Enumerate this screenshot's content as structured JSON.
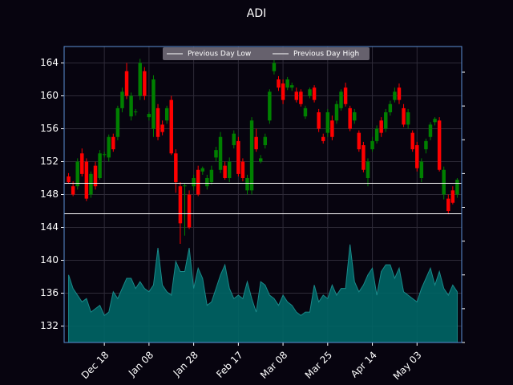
{
  "chart_data": {
    "type": "candlestick",
    "title": "ADI",
    "categories": [
      null,
      null,
      null,
      null,
      null,
      null,
      null,
      null,
      "Dec 18",
      null,
      null,
      null,
      null,
      null,
      null,
      null,
      null,
      null,
      "Jan 08",
      null,
      null,
      null,
      null,
      null,
      null,
      null,
      null,
      null,
      "Jan 28",
      null,
      null,
      null,
      null,
      null,
      null,
      null,
      null,
      null,
      "Feb 17",
      null,
      null,
      null,
      null,
      null,
      null,
      null,
      null,
      null,
      "Mar 08",
      null,
      null,
      null,
      null,
      null,
      null,
      null,
      null,
      null,
      "Mar 25",
      null,
      null,
      null,
      null,
      null,
      null,
      null,
      null,
      null,
      "Apr 14",
      null,
      null,
      null,
      null,
      null,
      null,
      null,
      null,
      null,
      "May 03",
      null,
      null,
      null,
      null,
      null,
      null,
      null,
      null,
      null
    ],
    "open": [
      150.2,
      149.0,
      149.0,
      153.0,
      152.0,
      148.0,
      151.5,
      150.0,
      152.8,
      152.5,
      155.0,
      155.0,
      158.5,
      163.0,
      157.5,
      158.0,
      160.0,
      163.0,
      157.4,
      156.0,
      158.5,
      156.5,
      157.0,
      159.5,
      153.0,
      149.0,
      149.0,
      148.0,
      149.0,
      151.0,
      150.8,
      149.0,
      149.5,
      152.5,
      151.0,
      151.5,
      150.0,
      154.0,
      154.5,
      152.0,
      148.5,
      148.5,
      155.0,
      152.0,
      154.0,
      157.0,
      163.0,
      162.0,
      161.5,
      161.0,
      161.0,
      160.5,
      160.5,
      157.5,
      160.0,
      161.0,
      158.0,
      155.0,
      155.5,
      157.0,
      157.0,
      158.5,
      161.0,
      158.5,
      157.0,
      155.5,
      154.0,
      150.0,
      153.5,
      154.5,
      157.0,
      156.0,
      158.0,
      159.5,
      161.0,
      158.5,
      156.5,
      155.5,
      154.0,
      150.0,
      153.5,
      155.0,
      156.8,
      157.0,
      148.0,
      147.5,
      148.5,
      148.0
    ],
    "high": [
      150.6,
      149.6,
      152.4,
      153.6,
      152.4,
      150.8,
      152.0,
      153.4,
      153.2,
      155.3,
      155.4,
      158.8,
      161.0,
      164.0,
      160.4,
      158.4,
      164.5,
      163.5,
      158.0,
      162.5,
      159.0,
      157.0,
      158.8,
      160.0,
      153.5,
      149.5,
      149.4,
      148.5,
      150.4,
      151.5,
      151.4,
      150.4,
      151.5,
      153.8,
      155.6,
      152.0,
      152.5,
      155.8,
      155.0,
      152.4,
      150.4,
      157.4,
      156.0,
      152.8,
      155.4,
      160.8,
      164.4,
      162.4,
      162.0,
      162.3,
      161.6,
      161.0,
      160.8,
      158.8,
      161.0,
      161.3,
      158.4,
      155.4,
      158.4,
      157.6,
      159.4,
      160.8,
      161.6,
      158.8,
      158.4,
      155.8,
      154.4,
      152.4,
      155.0,
      156.4,
      157.4,
      158.4,
      159.4,
      161.0,
      161.5,
      159.0,
      158.4,
      155.8,
      154.4,
      152.4,
      154.8,
      156.8,
      157.4,
      157.4,
      151.4,
      148.0,
      149.0,
      150.0
    ],
    "low": [
      149.4,
      147.8,
      148.6,
      150.2,
      147.2,
      147.6,
      148.6,
      149.8,
      152.5,
      152.0,
      153.2,
      154.6,
      158.0,
      159.6,
      157.0,
      157.6,
      159.5,
      159.5,
      157.0,
      155.0,
      154.6,
      155.2,
      156.6,
      152.8,
      148.2,
      142.0,
      143.0,
      143.8,
      148.5,
      147.8,
      150.4,
      148.6,
      149.2,
      152.0,
      150.6,
      149.8,
      149.5,
      153.6,
      150.2,
      149.6,
      148.0,
      148.0,
      153.2,
      151.8,
      153.6,
      156.6,
      162.6,
      160.6,
      159.0,
      160.7,
      160.6,
      159.2,
      158.7,
      157.2,
      159.7,
      159.2,
      155.6,
      154.2,
      155.0,
      154.6,
      156.6,
      158.2,
      158.7,
      155.7,
      156.6,
      153.2,
      150.7,
      149.0,
      153.2,
      154.2,
      155.0,
      155.6,
      157.6,
      159.2,
      159.0,
      156.2,
      156.0,
      153.2,
      150.8,
      149.5,
      153.0,
      154.6,
      156.4,
      150.8,
      147.4,
      145.6,
      146.8,
      147.6
    ],
    "close": [
      149.5,
      148.0,
      152.0,
      150.5,
      147.5,
      150.5,
      149.0,
      153.0,
      152.9,
      155.0,
      153.5,
      158.5,
      160.5,
      160.0,
      160.0,
      158.1,
      164.0,
      160.0,
      157.8,
      162.0,
      155.0,
      155.6,
      158.5,
      153.0,
      149.5,
      144.5,
      149.1,
      144.0,
      150.0,
      148.0,
      151.2,
      150.0,
      151.0,
      153.4,
      155.0,
      150.0,
      152.0,
      155.4,
      150.5,
      150.0,
      150.0,
      157.0,
      153.5,
      152.4,
      155.0,
      160.5,
      164.0,
      161.0,
      159.5,
      162.0,
      161.3,
      159.5,
      159.0,
      158.5,
      160.8,
      159.5,
      156.0,
      154.5,
      158.0,
      155.0,
      159.0,
      160.5,
      159.0,
      156.0,
      158.0,
      153.5,
      151.0,
      152.0,
      154.5,
      156.0,
      155.5,
      158.0,
      159.0,
      160.5,
      159.5,
      156.5,
      158.0,
      153.5,
      151.2,
      152.0,
      154.5,
      156.5,
      157.2,
      151.0,
      151.0,
      146.0,
      147.0,
      149.8
    ],
    "up_color": "#008000",
    "down_color": "#ff0000",
    "volume": {
      "axis": "y2",
      "color": "#006666",
      "values": [
        2.0,
        1.6,
        1.4,
        1.2,
        1.3,
        0.9,
        1.0,
        1.1,
        0.8,
        0.9,
        1.5,
        1.3,
        1.6,
        1.9,
        1.9,
        1.6,
        1.8,
        1.6,
        1.5,
        1.7,
        2.8,
        1.7,
        1.5,
        1.4,
        2.4,
        2.1,
        2.1,
        2.8,
        1.6,
        2.2,
        1.9,
        1.1,
        1.2,
        1.6,
        2.0,
        2.3,
        1.6,
        1.3,
        1.4,
        1.3,
        1.8,
        1.3,
        0.9,
        1.8,
        1.7,
        1.4,
        1.3,
        1.1,
        1.4,
        1.2,
        1.1,
        0.9,
        0.8,
        0.9,
        0.9,
        1.7,
        1.2,
        1.4,
        1.3,
        1.7,
        1.4,
        1.6,
        1.6,
        2.9,
        1.8,
        1.5,
        1.7,
        2.0,
        2.2,
        1.4,
        2.1,
        2.3,
        2.3,
        1.9,
        2.2,
        1.5,
        1.4,
        1.3,
        1.2,
        1.6,
        1.9,
        2.2,
        1.7,
        2.1,
        1.6,
        1.4,
        1.7,
        1.5
      ]
    },
    "hlines": [
      {
        "name": "Previous Day Low",
        "value": 145.66,
        "color": "#ffffff"
      },
      {
        "name": "Previous Day High",
        "value": 149.37,
        "color": "#ffffff"
      }
    ],
    "ylim": [
      130,
      166
    ],
    "yticks": [
      132,
      136,
      140,
      144,
      148,
      152,
      156,
      160,
      164
    ],
    "y2lim": [
      0,
      8.76
    ],
    "y2ticks": [
      0,
      1,
      2,
      3,
      4,
      5,
      6,
      7,
      8
    ],
    "grid": true,
    "legend": "upper center"
  }
}
